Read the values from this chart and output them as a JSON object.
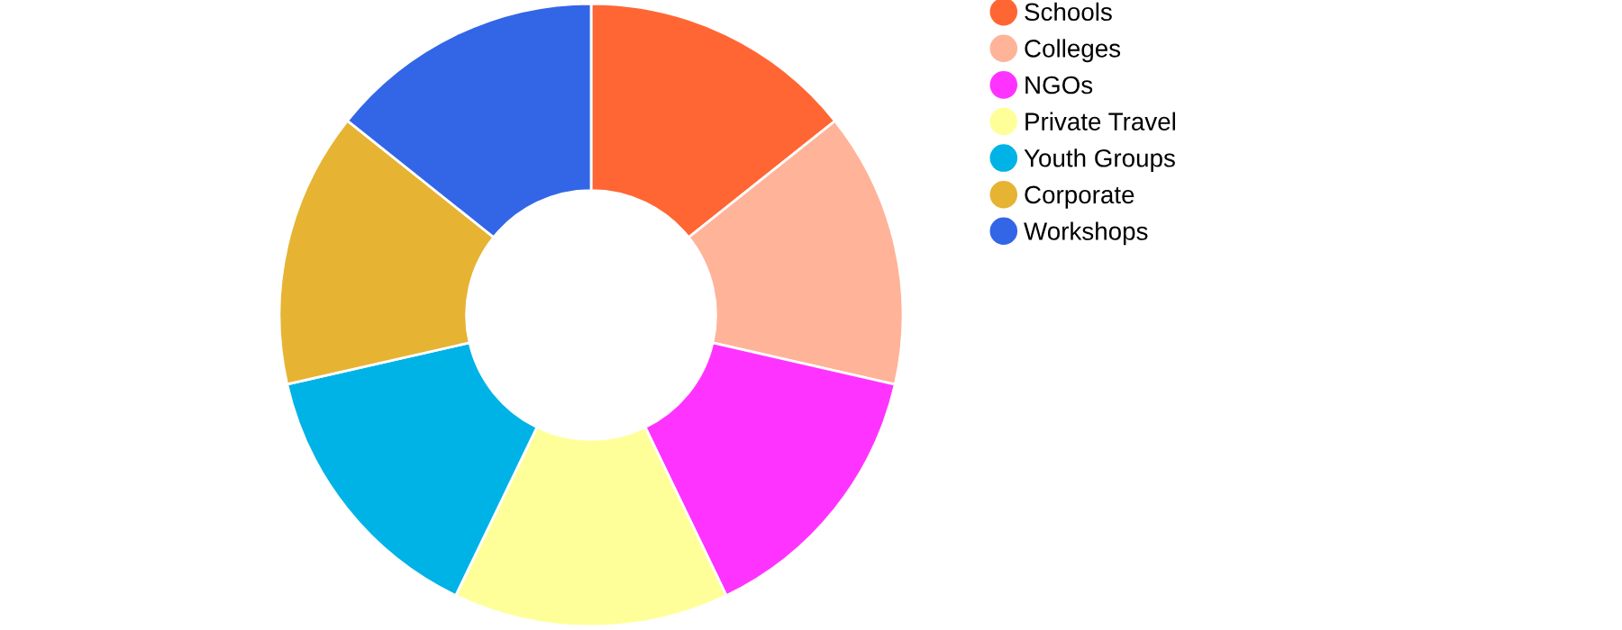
{
  "chart_data": {
    "type": "donut",
    "categories": [
      "Schools",
      "Colleges",
      "NGOs",
      "Private Travel",
      "Youth Groups",
      "Corporate",
      "Workshops"
    ],
    "values": [
      14.29,
      14.29,
      14.28,
      14.29,
      14.28,
      14.29,
      14.28
    ],
    "colors": [
      "#ff6633",
      "#ffb399",
      "#ff33ff",
      "#ffff99",
      "#00b3e6",
      "#e6b333",
      "#3366e6"
    ],
    "legend": "right"
  }
}
